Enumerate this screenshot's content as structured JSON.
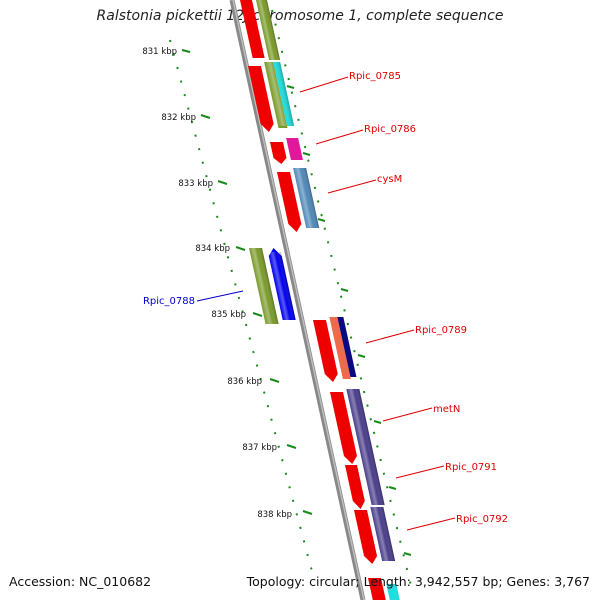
{
  "title": "Ralstonia pickettii 12J chromosome 1, complete sequence",
  "footer": {
    "accession": "Accession: NC_010682",
    "summary": "Topology: circular; Length: 3,942,557 bp; Genes: 3,767"
  },
  "ticks": [
    "831 kbp",
    "832 kbp",
    "833 kbp",
    "834 kbp",
    "835 kbp",
    "836 kbp",
    "837 kbp",
    "838 kbp"
  ],
  "gene_labels": [
    {
      "text": "Rpic_0785",
      "color": "#dd0000"
    },
    {
      "text": "Rpic_0786",
      "color": "#dd0000"
    },
    {
      "text": "cysM",
      "color": "#dd0000"
    },
    {
      "text": "Rpic_0788",
      "color": "#0000cc"
    },
    {
      "text": "Rpic_0789",
      "color": "#dd0000"
    },
    {
      "text": "metN",
      "color": "#dd0000"
    },
    {
      "text": "Rpic_0791",
      "color": "#dd0000"
    },
    {
      "text": "Rpic_0792",
      "color": "#dd0000"
    }
  ],
  "colors": {
    "cds": "#ee0000",
    "olive": "#7a9a2a",
    "cyan": "#22dddd",
    "magenta": "#e0189a",
    "steel": "#4f88b8",
    "blue": "#0000ee",
    "salmon": "#ee6a4a",
    "navy": "#0a0a80",
    "slate": "#4a3d8a",
    "backbone": "#888888",
    "dots": "#1a8a1a"
  }
}
